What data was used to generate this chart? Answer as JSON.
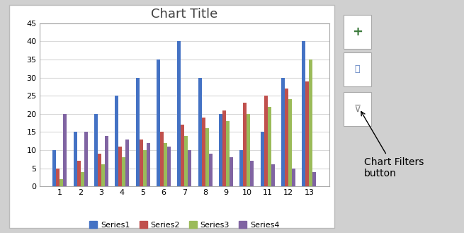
{
  "title": "Chart Title",
  "categories": [
    1,
    2,
    3,
    4,
    5,
    6,
    7,
    8,
    9,
    10,
    11,
    12,
    13
  ],
  "series": {
    "Series1": [
      10,
      15,
      20,
      25,
      30,
      35,
      40,
      30,
      20,
      10,
      15,
      30,
      40
    ],
    "Series2": [
      5,
      7,
      9,
      11,
      13,
      15,
      17,
      19,
      21,
      23,
      25,
      27,
      29
    ],
    "Series3": [
      2,
      4,
      6,
      8,
      10,
      12,
      14,
      16,
      18,
      20,
      22,
      24,
      35
    ],
    "Series4": [
      20,
      15,
      14,
      13,
      12,
      11,
      10,
      9,
      8,
      7,
      6,
      5,
      4
    ]
  },
  "colors": {
    "Series1": "#4472C4",
    "Series2": "#C0504D",
    "Series3": "#9BBB59",
    "Series4": "#8064A2"
  },
  "ylim": [
    0,
    45
  ],
  "yticks": [
    0,
    5,
    10,
    15,
    20,
    25,
    30,
    35,
    40,
    45
  ],
  "grid_color": "#D9D9D9",
  "title_fontsize": 13,
  "fig_bg": "#D0D0D0",
  "chart_bg": "#FFFFFF",
  "border_color": "#AAAAAA",
  "tick_fontsize": 8,
  "legend_fontsize": 8,
  "bar_width": 0.17,
  "button_plus_color": "#3B7A3B",
  "button_brush_color": "#5B7FC0",
  "button_filter_color": "#888888",
  "annotation_text": "Chart Filters\nbutton",
  "annotation_fontsize": 10
}
